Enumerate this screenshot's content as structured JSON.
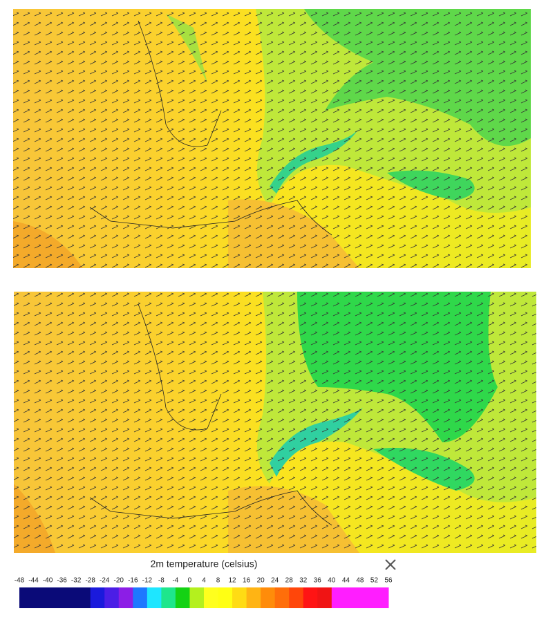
{
  "legend": {
    "title": "2m temperature (celsius)",
    "ticks": [
      -48,
      -44,
      -40,
      -36,
      -32,
      -28,
      -24,
      -20,
      -16,
      -12,
      -8,
      -4,
      0,
      4,
      8,
      12,
      16,
      20,
      24,
      28,
      32,
      36,
      40,
      44,
      48,
      52,
      56
    ],
    "colors": [
      "#0a0a78",
      "#0a0a78",
      "#0a0a78",
      "#0a0a78",
      "#0a0a78",
      "#1a1adc",
      "#4b1ee6",
      "#8c1ee6",
      "#1e78ff",
      "#1ee6ff",
      "#1ee68c",
      "#14d214",
      "#b4f01e",
      "#ffff1e",
      "#ffff14",
      "#ffdc14",
      "#ffb414",
      "#ff8c0a",
      "#ff6e0a",
      "#ff460a",
      "#ff1414",
      "#f01414",
      "#ff1eff",
      "#ff1eff",
      "#ff1eff",
      "#ff1eff"
    ]
  }
}
